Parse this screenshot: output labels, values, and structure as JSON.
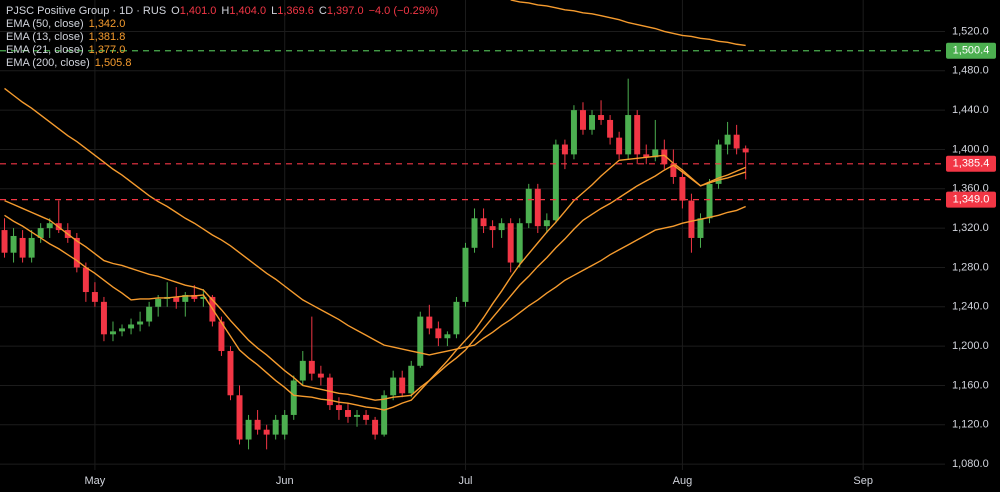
{
  "chart_data": {
    "type": "candlestick",
    "legend": {
      "title": "PJSC Positive Group · 1D · RUS",
      "ohlc": [
        {
          "key": "O",
          "value": "1,401.0"
        },
        {
          "key": "H",
          "value": "1,404.0"
        },
        {
          "key": "L",
          "value": "1,369.6"
        },
        {
          "key": "C",
          "value": "1,397.0"
        }
      ],
      "change": "−4.0 (−0.29%)"
    },
    "categories": [
      null,
      null,
      null,
      null,
      null,
      null,
      null,
      null,
      null,
      null,
      "May",
      null,
      null,
      null,
      null,
      null,
      null,
      null,
      null,
      null,
      null,
      null,
      null,
      null,
      null,
      null,
      null,
      null,
      null,
      null,
      null,
      "Jun",
      null,
      null,
      null,
      null,
      null,
      null,
      null,
      null,
      null,
      null,
      null,
      null,
      null,
      null,
      null,
      null,
      null,
      null,
      null,
      "Jul",
      null,
      null,
      null,
      null,
      null,
      null,
      null,
      null,
      null,
      null,
      null,
      null,
      null,
      null,
      null,
      null,
      null,
      null,
      null,
      null,
      null,
      null,
      null,
      "Aug",
      null,
      null,
      null,
      null,
      null,
      null,
      null,
      null,
      null,
      null,
      null,
      null,
      null,
      null,
      null,
      null,
      null,
      null,
      null,
      "Sep",
      null,
      null,
      null,
      null,
      null,
      null,
      null,
      null
    ],
    "open": [
      1318,
      1295,
      1310,
      1290,
      1310,
      1320,
      1325,
      1318,
      1310,
      1280,
      1255,
      1245,
      1212,
      1215,
      1218,
      1222,
      1225,
      1240,
      1248,
      1250,
      1245,
      1252,
      1248,
      1250,
      1225,
      1195,
      1150,
      1105,
      1125,
      1115,
      1110,
      1110,
      1130,
      1165,
      1185,
      1172,
      1168,
      1140,
      1135,
      1128,
      1130,
      1125,
      1110,
      1150,
      1168,
      1152,
      1180,
      1230,
      1218,
      1208,
      1212,
      1245,
      1300,
      1330,
      1322,
      1318,
      1325,
      1285,
      1325,
      1360,
      1322,
      1328,
      1405,
      1395,
      1440,
      1420,
      1435,
      1430,
      1412,
      1395,
      1435,
      1395,
      1392,
      1400,
      1385,
      1372,
      1348,
      1310,
      1330,
      1365,
      1405,
      1415,
      1401,
      null,
      null,
      null,
      null,
      null,
      null,
      null,
      null,
      null,
      null,
      null,
      null,
      null,
      null,
      null,
      null,
      null,
      null,
      null,
      null,
      null
    ],
    "high": [
      1330,
      1320,
      1318,
      1318,
      1325,
      1330,
      1348,
      1325,
      1315,
      1285,
      1265,
      1250,
      1225,
      1222,
      1228,
      1235,
      1245,
      1252,
      1265,
      1260,
      1255,
      1262,
      1258,
      1252,
      1230,
      1200,
      1160,
      1130,
      1135,
      1120,
      1130,
      1135,
      1170,
      1195,
      1230,
      1180,
      1172,
      1148,
      1142,
      1135,
      1135,
      1128,
      1155,
      1175,
      1175,
      1185,
      1235,
      1242,
      1225,
      1215,
      1250,
      1305,
      1340,
      1340,
      1328,
      1330,
      1330,
      1330,
      1365,
      1365,
      1335,
      1410,
      1410,
      1445,
      1448,
      1440,
      1450,
      1435,
      1418,
      1472,
      1440,
      1405,
      1430,
      1410,
      1400,
      1380,
      1355,
      1335,
      1370,
      1410,
      1428,
      1425,
      1404,
      null,
      null,
      null,
      null,
      null,
      null,
      null,
      null,
      null,
      null,
      null,
      null,
      null,
      null,
      null,
      null,
      null,
      null,
      null,
      null,
      null
    ],
    "low": [
      1290,
      1285,
      1285,
      1285,
      1305,
      1310,
      1315,
      1305,
      1275,
      1245,
      1240,
      1205,
      1205,
      1210,
      1212,
      1215,
      1220,
      1230,
      1240,
      1238,
      1230,
      1245,
      1240,
      1220,
      1190,
      1145,
      1100,
      1095,
      1110,
      1095,
      1105,
      1105,
      1125,
      1160,
      1165,
      1160,
      1135,
      1125,
      1122,
      1118,
      1120,
      1105,
      1108,
      1145,
      1148,
      1148,
      1178,
      1212,
      1200,
      1200,
      1208,
      1240,
      1295,
      1315,
      1300,
      1310,
      1275,
      1280,
      1320,
      1315,
      1315,
      1325,
      1380,
      1390,
      1415,
      1415,
      1425,
      1405,
      1390,
      1390,
      1385,
      1385,
      1388,
      1380,
      1365,
      1340,
      1295,
      1300,
      1325,
      1360,
      1395,
      1395,
      1369.6,
      null,
      null,
      null,
      null,
      null,
      null,
      null,
      null,
      null,
      null,
      null,
      null,
      null,
      null,
      null,
      null,
      null,
      null,
      null,
      null,
      null
    ],
    "close": [
      1295,
      1312,
      1290,
      1310,
      1320,
      1325,
      1318,
      1310,
      1280,
      1255,
      1245,
      1212,
      1215,
      1218,
      1222,
      1225,
      1240,
      1248,
      1250,
      1245,
      1252,
      1248,
      1250,
      1225,
      1195,
      1150,
      1105,
      1125,
      1115,
      1110,
      1125,
      1130,
      1165,
      1185,
      1172,
      1168,
      1140,
      1135,
      1128,
      1130,
      1125,
      1110,
      1150,
      1168,
      1152,
      1180,
      1230,
      1218,
      1208,
      1212,
      1245,
      1300,
      1330,
      1322,
      1318,
      1325,
      1285,
      1325,
      1360,
      1322,
      1328,
      1405,
      1395,
      1440,
      1420,
      1435,
      1430,
      1412,
      1395,
      1435,
      1395,
      1392,
      1400,
      1385,
      1372,
      1348,
      1310,
      1330,
      1365,
      1405,
      1415,
      1401,
      1397,
      null,
      null,
      null,
      null,
      null,
      null,
      null,
      null,
      null,
      null,
      null,
      null,
      null,
      null,
      null,
      null,
      null,
      null,
      null,
      null,
      null
    ],
    "up_color": "#4caf50",
    "down_color": "#f23645",
    "series": [
      {
        "name": "EMA (50, close)",
        "value_label": "1,342.0",
        "color": "#f59b2e",
        "values": [
          1462,
          1455,
          1448,
          1442,
          1435,
          1428,
          1421,
          1414,
          1408,
          1401,
          1394,
          1387,
          1380,
          1374,
          1367,
          1360,
          1353,
          1347,
          1342,
          1336,
          1330,
          1325,
          1319,
          1313,
          1308,
          1302,
          1295,
          1288,
          1281,
          1274,
          1268,
          1261,
          1254,
          1247,
          1242,
          1237,
          1232,
          1227,
          1221,
          1216,
          1211,
          1206,
          1201,
          1199,
          1197,
          1195,
          1193,
          1191,
          1193,
          1195,
          1197,
          1199,
          1201,
          1208,
          1214,
          1221,
          1227,
          1234,
          1241,
          1247,
          1254,
          1260,
          1267,
          1272,
          1277,
          1282,
          1287,
          1293,
          1298,
          1303,
          1308,
          1313,
          1318,
          1320,
          1322,
          1325,
          1327,
          1329,
          1331,
          1333,
          1336,
          1338,
          1342,
          null,
          null,
          null,
          null,
          null,
          null,
          null,
          null,
          null,
          null,
          null,
          null,
          null,
          null,
          null,
          null,
          null,
          null,
          null,
          null,
          null
        ]
      },
      {
        "name": "EMA (13, close)",
        "value_label": "1,381.8",
        "color": "#f59b2e",
        "values": [
          1333,
          1327,
          1322,
          1316,
          1310,
          1304,
          1299,
          1293,
          1287,
          1280,
          1274,
          1267,
          1260,
          1254,
          1247,
          1248,
          1248,
          1249,
          1249,
          1250,
          1251,
          1251,
          1252,
          1238,
          1224,
          1210,
          1196,
          1188,
          1181,
          1173,
          1165,
          1158,
          1150,
          1149,
          1148,
          1146,
          1145,
          1143,
          1142,
          1140,
          1138,
          1137,
          1135,
          1138,
          1142,
          1145,
          1155,
          1165,
          1175,
          1185,
          1196,
          1206,
          1216,
          1229,
          1243,
          1256,
          1270,
          1283,
          1294,
          1305,
          1316,
          1326,
          1337,
          1348,
          1356,
          1364,
          1373,
          1381,
          1389,
          1390,
          1391,
          1392,
          1393,
          1394,
          1386,
          1379,
          1371,
          1363,
          1367,
          1371,
          1374,
          1378,
          1381.8,
          null,
          null,
          null,
          null,
          null,
          null,
          null,
          null,
          null,
          null,
          null,
          null,
          null,
          null,
          null,
          null,
          null,
          null,
          null,
          null,
          null
        ]
      },
      {
        "name": "EMA (21, close)",
        "value_label": "1,377.0",
        "color": "#f59b2e",
        "values": [
          1348,
          1344,
          1340,
          1336,
          1332,
          1328,
          1321,
          1314,
          1307,
          1301,
          1294,
          1287,
          1284,
          1282,
          1279,
          1276,
          1273,
          1271,
          1268,
          1265,
          1262,
          1260,
          1257,
          1247,
          1237,
          1226,
          1216,
          1206,
          1198,
          1191,
          1183,
          1175,
          1168,
          1160,
          1158,
          1156,
          1154,
          1152,
          1151,
          1149,
          1147,
          1145,
          1146,
          1148,
          1149,
          1150,
          1158,
          1165,
          1173,
          1181,
          1188,
          1196,
          1207,
          1218,
          1229,
          1240,
          1251,
          1262,
          1271,
          1281,
          1290,
          1300,
          1309,
          1319,
          1328,
          1334,
          1340,
          1345,
          1351,
          1357,
          1363,
          1368,
          1373,
          1379,
          1384,
          1377,
          1370,
          1363,
          1366,
          1369,
          1371,
          1374,
          1377,
          null,
          null,
          null,
          null,
          null,
          null,
          null,
          null,
          null,
          null,
          null,
          null,
          null,
          null,
          null,
          null,
          null,
          null,
          null,
          null,
          null
        ]
      },
      {
        "name": "EMA (200, close)",
        "value_label": "1,505.8",
        "color": "#f59b2e",
        "values": [
          null,
          null,
          null,
          null,
          null,
          null,
          null,
          null,
          null,
          null,
          null,
          null,
          null,
          null,
          null,
          null,
          null,
          null,
          null,
          null,
          null,
          null,
          null,
          null,
          null,
          null,
          null,
          null,
          null,
          null,
          null,
          null,
          null,
          null,
          null,
          null,
          null,
          null,
          null,
          null,
          null,
          null,
          null,
          null,
          null,
          null,
          null,
          null,
          null,
          null,
          null,
          null,
          null,
          null,
          null,
          null,
          1552,
          1550,
          1549,
          1547,
          1546,
          1544,
          1542,
          1541,
          1539,
          1538,
          1536,
          1534,
          1532,
          1529,
          1527,
          1525,
          1523,
          1520,
          1518,
          1516,
          1515,
          1513,
          1512,
          1510,
          1509,
          1507,
          1505.8,
          null,
          null,
          null,
          null,
          null,
          null,
          null,
          null,
          null,
          null,
          null,
          null,
          null,
          null,
          null,
          null,
          null,
          null,
          null,
          null,
          null
        ]
      }
    ],
    "price_lines": [
      {
        "value": 1500.4,
        "label": "1,500.4",
        "color": "#4caf50"
      },
      {
        "value": 1385.4,
        "label": "1,385.4",
        "color": "#f23645"
      },
      {
        "value": 1349.0,
        "label": "1,349.0",
        "color": "#f23645"
      }
    ],
    "ylim": [
      1074,
      1552
    ],
    "yticks": [
      {
        "value": 1080,
        "label": "1,080.0"
      },
      {
        "value": 1120,
        "label": "1,120.0"
      },
      {
        "value": 1160,
        "label": "1,160.0"
      },
      {
        "value": 1200,
        "label": "1,200.0"
      },
      {
        "value": 1240,
        "label": "1,240.0"
      },
      {
        "value": 1280,
        "label": "1,280.0"
      },
      {
        "value": 1320,
        "label": "1,320.0"
      },
      {
        "value": 1360,
        "label": "1,360.0"
      },
      {
        "value": 1400,
        "label": "1,400.0"
      },
      {
        "value": 1440,
        "label": "1,440.0"
      },
      {
        "value": 1480,
        "label": "1,480.0"
      },
      {
        "value": 1520,
        "label": "1,520.0"
      }
    ],
    "grid": true
  }
}
